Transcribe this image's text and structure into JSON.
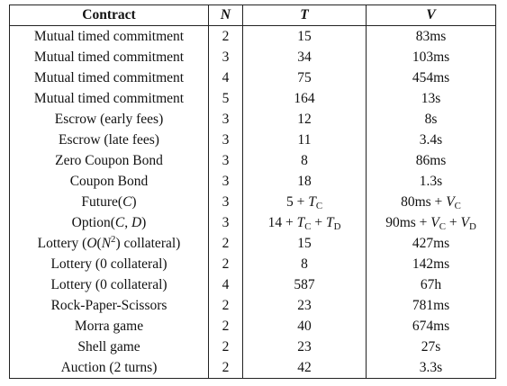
{
  "table": {
    "header": [
      "Contract",
      "N",
      "T",
      "V"
    ],
    "rows": [
      [
        "Mutual timed commitment",
        "2",
        "15",
        "83ms"
      ],
      [
        "Mutual timed commitment",
        "3",
        "34",
        "103ms"
      ],
      [
        "Mutual timed commitment",
        "4",
        "75",
        "454ms"
      ],
      [
        "Mutual timed commitment",
        "5",
        "164",
        "13s"
      ],
      [
        "Escrow (early fees)",
        "3",
        "12",
        "8s"
      ],
      [
        "Escrow (late fees)",
        "3",
        "11",
        "3.4s"
      ],
      [
        "Zero Coupon Bond",
        "3",
        "8",
        "86ms"
      ],
      [
        "Coupon Bond",
        "3",
        "18",
        "1.3s"
      ],
      [
        [
          "Future(",
          {
            "text": "C",
            "style": "italic"
          },
          ")"
        ],
        "3",
        [
          "5 + ",
          {
            "text": "T",
            "style": "italic"
          },
          {
            "text": "C",
            "style": "sub"
          }
        ],
        [
          "80ms + ",
          {
            "text": "V",
            "style": "italic"
          },
          {
            "text": "C",
            "style": "sub"
          }
        ]
      ],
      [
        [
          "Option(",
          {
            "text": "C",
            "style": "italic"
          },
          ", ",
          {
            "text": "D",
            "style": "italic"
          },
          ")"
        ],
        "3",
        [
          "14 + ",
          {
            "text": "T",
            "style": "italic"
          },
          {
            "text": "C",
            "style": "sub"
          },
          " + ",
          {
            "text": "T",
            "style": "italic"
          },
          {
            "text": "D",
            "style": "sub"
          }
        ],
        [
          "90ms + ",
          {
            "text": "V",
            "style": "italic"
          },
          {
            "text": "C",
            "style": "sub"
          },
          " + ",
          {
            "text": "V",
            "style": "italic"
          },
          {
            "text": "D",
            "style": "sub"
          }
        ]
      ],
      [
        [
          "Lottery (",
          {
            "text": "O",
            "style": "italic"
          },
          "(",
          {
            "text": "N",
            "style": "italic"
          },
          {
            "text": "2",
            "style": "sup"
          },
          ") collateral)"
        ],
        "2",
        "15",
        "427ms"
      ],
      [
        "Lottery (0 collateral)",
        "2",
        "8",
        "142ms"
      ],
      [
        "Lottery (0 collateral)",
        "4",
        "587",
        "67h"
      ],
      [
        "Rock-Paper-Scissors",
        "2",
        "23",
        "781ms"
      ],
      [
        "Morra game",
        "2",
        "40",
        "674ms"
      ],
      [
        "Shell game",
        "2",
        "23",
        "27s"
      ],
      [
        "Auction (2 turns)",
        "2",
        "42",
        "3.3s"
      ]
    ]
  }
}
